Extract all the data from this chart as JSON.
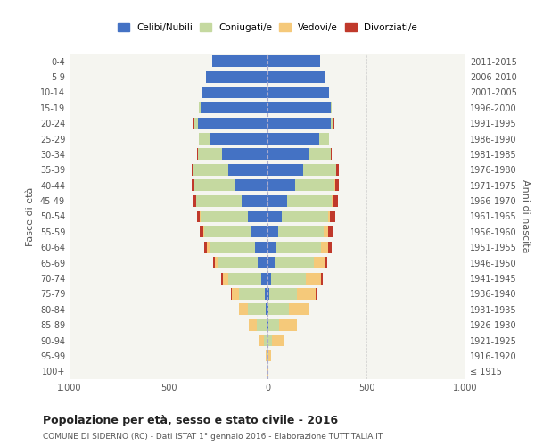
{
  "age_groups": [
    "100+",
    "95-99",
    "90-94",
    "85-89",
    "80-84",
    "75-79",
    "70-74",
    "65-69",
    "60-64",
    "55-59",
    "50-54",
    "45-49",
    "40-44",
    "35-39",
    "30-34",
    "25-29",
    "20-24",
    "15-19",
    "10-14",
    "5-9",
    "0-4"
  ],
  "birth_years": [
    "≤ 1915",
    "1916-1920",
    "1921-1925",
    "1926-1930",
    "1931-1935",
    "1936-1940",
    "1941-1945",
    "1946-1950",
    "1951-1955",
    "1956-1960",
    "1961-1965",
    "1966-1970",
    "1971-1975",
    "1976-1980",
    "1981-1985",
    "1986-1990",
    "1991-1995",
    "1996-2000",
    "2001-2005",
    "2006-2010",
    "2011-2015"
  ],
  "males": {
    "celibe": [
      0,
      0,
      2,
      4,
      8,
      15,
      30,
      50,
      65,
      80,
      100,
      130,
      160,
      200,
      230,
      290,
      350,
      340,
      330,
      310,
      280
    ],
    "coniugato": [
      1,
      3,
      18,
      50,
      90,
      130,
      170,
      200,
      230,
      240,
      240,
      230,
      210,
      175,
      120,
      55,
      20,
      5,
      0,
      0,
      0
    ],
    "vedovo": [
      1,
      5,
      20,
      40,
      45,
      35,
      25,
      15,
      10,
      5,
      3,
      2,
      1,
      1,
      0,
      0,
      0,
      0,
      0,
      0,
      0
    ],
    "divorziato": [
      0,
      0,
      0,
      0,
      2,
      5,
      8,
      12,
      15,
      18,
      15,
      12,
      10,
      8,
      5,
      3,
      2,
      0,
      0,
      0,
      0
    ]
  },
  "females": {
    "nubile": [
      0,
      0,
      2,
      4,
      6,
      10,
      20,
      35,
      45,
      55,
      70,
      100,
      140,
      180,
      210,
      260,
      320,
      320,
      310,
      295,
      265
    ],
    "coniugata": [
      1,
      5,
      22,
      55,
      100,
      140,
      175,
      200,
      225,
      230,
      235,
      225,
      200,
      165,
      110,
      50,
      15,
      4,
      0,
      0,
      0
    ],
    "vedova": [
      2,
      15,
      55,
      90,
      105,
      95,
      75,
      55,
      35,
      20,
      12,
      7,
      4,
      2,
      1,
      0,
      0,
      0,
      0,
      0,
      0
    ],
    "divorziata": [
      0,
      0,
      0,
      1,
      2,
      5,
      8,
      12,
      18,
      22,
      25,
      22,
      18,
      12,
      5,
      2,
      1,
      0,
      0,
      0,
      0
    ]
  },
  "color_celibe": "#4472c4",
  "color_coniugato": "#c5d9a0",
  "color_vedovo": "#f5c97a",
  "color_divorziato": "#c0392b",
  "xlim": 1000,
  "title": "Popolazione per età, sesso e stato civile - 2016",
  "subtitle": "COMUNE DI SIDERNO (RC) - Dati ISTAT 1° gennaio 2016 - Elaborazione TUTTITALIA.IT",
  "ylabel_left": "Fasce di età",
  "ylabel_right": "Anni di nascita",
  "legend_labels": [
    "Celibi/Nubili",
    "Coniugati/e",
    "Vedovi/e",
    "Divorziati/e"
  ],
  "bg_color": "#f5f5f0",
  "grid_color": "#cccccc"
}
